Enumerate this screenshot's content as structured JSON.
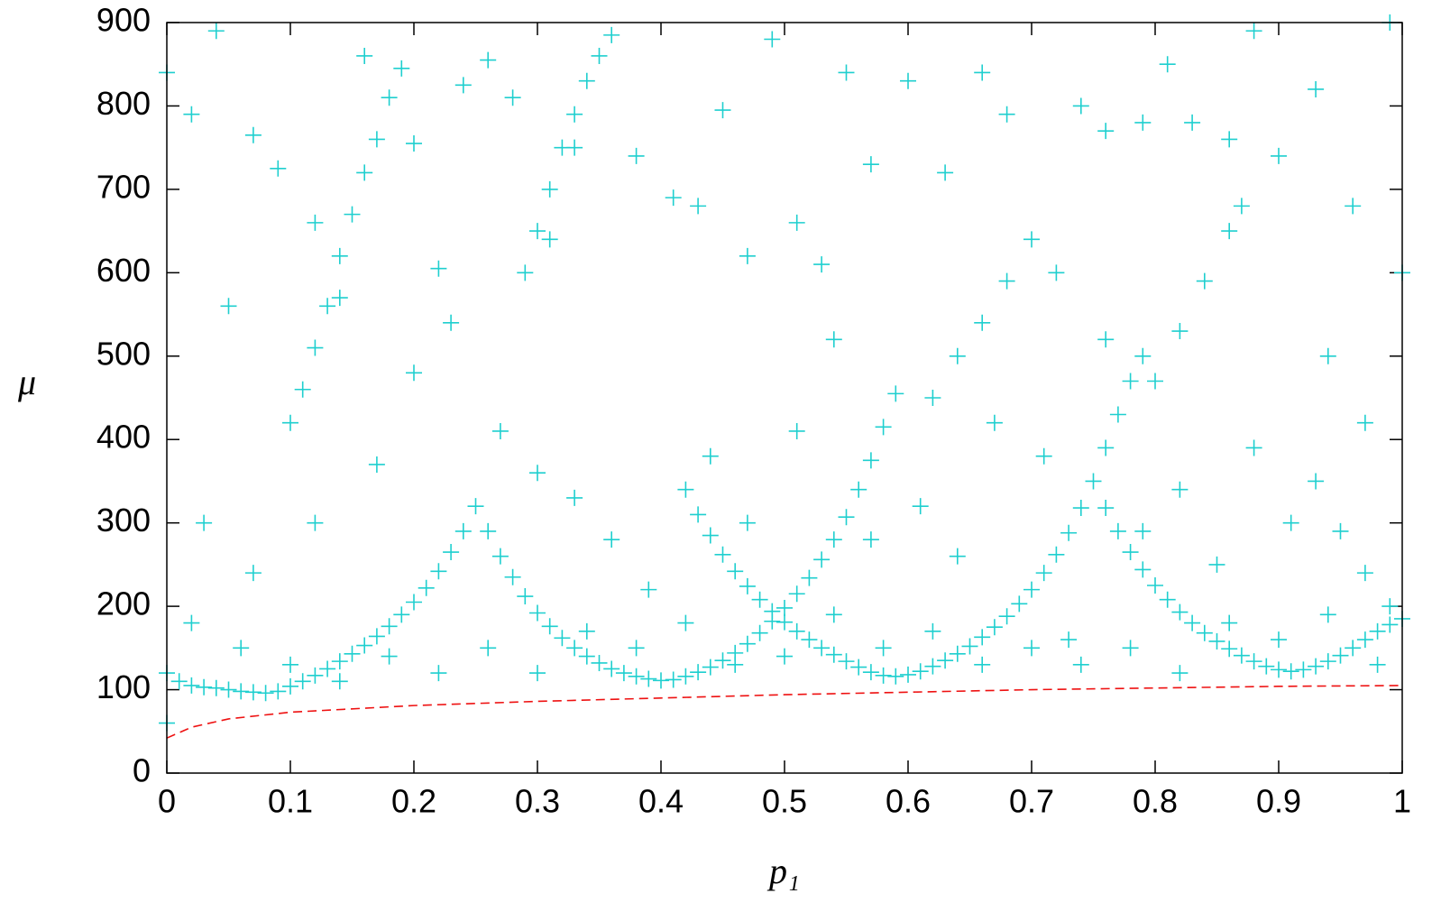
{
  "chart_data": {
    "type": "scatter",
    "xlabel": "p₁",
    "ylabel": "μ",
    "xlim": [
      0,
      1
    ],
    "ylim": [
      0,
      900
    ],
    "xticks": [
      0,
      0.1,
      0.2,
      0.3,
      0.4,
      0.5,
      0.6,
      0.7,
      0.8,
      0.9,
      1
    ],
    "yticks": [
      0,
      100,
      200,
      300,
      400,
      500,
      600,
      700,
      800,
      900
    ],
    "series": [
      {
        "type": "scatter",
        "marker": "+",
        "color": "#1fcfcf",
        "points": [
          [
            0.0,
            120
          ],
          [
            0.01,
            110
          ],
          [
            0.02,
            105
          ],
          [
            0.03,
            103
          ],
          [
            0.04,
            102
          ],
          [
            0.05,
            100
          ],
          [
            0.06,
            98
          ],
          [
            0.07,
            97
          ],
          [
            0.08,
            96
          ],
          [
            0.09,
            98
          ],
          [
            0.1,
            104
          ],
          [
            0.11,
            110
          ],
          [
            0.12,
            117
          ],
          [
            0.13,
            125
          ],
          [
            0.14,
            134
          ],
          [
            0.15,
            143
          ],
          [
            0.16,
            153
          ],
          [
            0.17,
            164
          ],
          [
            0.18,
            176
          ],
          [
            0.19,
            190
          ],
          [
            0.2,
            205
          ],
          [
            0.21,
            222
          ],
          [
            0.22,
            242
          ],
          [
            0.23,
            265
          ],
          [
            0.24,
            290
          ],
          [
            0.25,
            320
          ],
          [
            0.26,
            290
          ],
          [
            0.27,
            260
          ],
          [
            0.28,
            235
          ],
          [
            0.29,
            212
          ],
          [
            0.3,
            192
          ],
          [
            0.31,
            176
          ],
          [
            0.32,
            162
          ],
          [
            0.33,
            150
          ],
          [
            0.34,
            140
          ],
          [
            0.35,
            132
          ],
          [
            0.36,
            125
          ],
          [
            0.37,
            120
          ],
          [
            0.38,
            116
          ],
          [
            0.39,
            113
          ],
          [
            0.4,
            111
          ],
          [
            0.41,
            112
          ],
          [
            0.42,
            116
          ],
          [
            0.43,
            121
          ],
          [
            0.44,
            127
          ],
          [
            0.45,
            135
          ],
          [
            0.46,
            144
          ],
          [
            0.47,
            155
          ],
          [
            0.48,
            168
          ],
          [
            0.49,
            182
          ],
          [
            0.5,
            198
          ],
          [
            0.51,
            215
          ],
          [
            0.52,
            234
          ],
          [
            0.53,
            256
          ],
          [
            0.54,
            280
          ],
          [
            0.55,
            307
          ],
          [
            0.56,
            340
          ],
          [
            0.57,
            375
          ],
          [
            0.58,
            415
          ],
          [
            0.59,
            455
          ],
          [
            0.42,
            340
          ],
          [
            0.43,
            310
          ],
          [
            0.44,
            285
          ],
          [
            0.45,
            262
          ],
          [
            0.46,
            242
          ],
          [
            0.47,
            224
          ],
          [
            0.48,
            208
          ],
          [
            0.49,
            194
          ],
          [
            0.5,
            181
          ],
          [
            0.51,
            170
          ],
          [
            0.52,
            160
          ],
          [
            0.53,
            150
          ],
          [
            0.54,
            142
          ],
          [
            0.55,
            134
          ],
          [
            0.56,
            127
          ],
          [
            0.57,
            121
          ],
          [
            0.58,
            117
          ],
          [
            0.59,
            116
          ],
          [
            0.6,
            118
          ],
          [
            0.61,
            122
          ],
          [
            0.62,
            128
          ],
          [
            0.63,
            135
          ],
          [
            0.64,
            143
          ],
          [
            0.65,
            152
          ],
          [
            0.66,
            163
          ],
          [
            0.67,
            175
          ],
          [
            0.68,
            188
          ],
          [
            0.69,
            203
          ],
          [
            0.7,
            220
          ],
          [
            0.71,
            240
          ],
          [
            0.72,
            262
          ],
          [
            0.73,
            288
          ],
          [
            0.74,
            318
          ],
          [
            0.75,
            350
          ],
          [
            0.76,
            390
          ],
          [
            0.77,
            430
          ],
          [
            0.78,
            470
          ],
          [
            0.79,
            500
          ],
          [
            0.76,
            318
          ],
          [
            0.77,
            290
          ],
          [
            0.78,
            265
          ],
          [
            0.79,
            244
          ],
          [
            0.8,
            225
          ],
          [
            0.81,
            208
          ],
          [
            0.82,
            193
          ],
          [
            0.83,
            180
          ],
          [
            0.84,
            168
          ],
          [
            0.85,
            158
          ],
          [
            0.86,
            149
          ],
          [
            0.87,
            141
          ],
          [
            0.88,
            134
          ],
          [
            0.89,
            128
          ],
          [
            0.9,
            124
          ],
          [
            0.91,
            122
          ],
          [
            0.92,
            124
          ],
          [
            0.93,
            128
          ],
          [
            0.94,
            134
          ],
          [
            0.95,
            141
          ],
          [
            0.96,
            150
          ],
          [
            0.97,
            160
          ],
          [
            0.98,
            170
          ],
          [
            0.99,
            178
          ],
          [
            1.0,
            185
          ],
          [
            0.1,
            420
          ],
          [
            0.11,
            460
          ],
          [
            0.12,
            510
          ],
          [
            0.13,
            560
          ],
          [
            0.14,
            620
          ],
          [
            0.15,
            670
          ],
          [
            0.16,
            720
          ],
          [
            0.17,
            760
          ],
          [
            0.18,
            810
          ],
          [
            0.19,
            845
          ],
          [
            0.29,
            600
          ],
          [
            0.3,
            650
          ],
          [
            0.31,
            700
          ],
          [
            0.32,
            750
          ],
          [
            0.33,
            790
          ],
          [
            0.34,
            830
          ],
          [
            0.35,
            860
          ],
          [
            0.36,
            885
          ],
          [
            0.62,
            450
          ],
          [
            0.64,
            500
          ],
          [
            0.66,
            540
          ],
          [
            0.68,
            590
          ],
          [
            0.7,
            640
          ],
          [
            0.8,
            470
          ],
          [
            0.82,
            530
          ],
          [
            0.84,
            590
          ],
          [
            0.86,
            650
          ],
          [
            0.87,
            680
          ],
          [
            0.93,
            350
          ],
          [
            0.95,
            290
          ],
          [
            0.97,
            240
          ],
          [
            0.99,
            200
          ],
          [
            0.0,
            840
          ],
          [
            0.02,
            790
          ],
          [
            0.04,
            890
          ],
          [
            0.07,
            765
          ],
          [
            0.09,
            725
          ],
          [
            0.12,
            660
          ],
          [
            0.14,
            570
          ],
          [
            0.16,
            860
          ],
          [
            0.2,
            755
          ],
          [
            0.22,
            605
          ],
          [
            0.24,
            825
          ],
          [
            0.26,
            855
          ],
          [
            0.28,
            810
          ],
          [
            0.31,
            640
          ],
          [
            0.33,
            750
          ],
          [
            0.38,
            740
          ],
          [
            0.41,
            690
          ],
          [
            0.43,
            680
          ],
          [
            0.45,
            795
          ],
          [
            0.47,
            620
          ],
          [
            0.49,
            880
          ],
          [
            0.51,
            660
          ],
          [
            0.53,
            610
          ],
          [
            0.55,
            840
          ],
          [
            0.57,
            730
          ],
          [
            0.6,
            830
          ],
          [
            0.63,
            720
          ],
          [
            0.66,
            840
          ],
          [
            0.68,
            790
          ],
          [
            0.72,
            600
          ],
          [
            0.74,
            800
          ],
          [
            0.76,
            770
          ],
          [
            0.79,
            780
          ],
          [
            0.81,
            850
          ],
          [
            0.83,
            780
          ],
          [
            0.86,
            760
          ],
          [
            0.88,
            890
          ],
          [
            0.9,
            740
          ],
          [
            0.93,
            820
          ],
          [
            0.96,
            680
          ],
          [
            0.99,
            900
          ],
          [
            0.03,
            300
          ],
          [
            0.05,
            560
          ],
          [
            0.07,
            240
          ],
          [
            0.12,
            300
          ],
          [
            0.17,
            370
          ],
          [
            0.2,
            480
          ],
          [
            0.23,
            540
          ],
          [
            0.27,
            410
          ],
          [
            0.3,
            360
          ],
          [
            0.33,
            330
          ],
          [
            0.36,
            280
          ],
          [
            0.39,
            220
          ],
          [
            0.44,
            380
          ],
          [
            0.47,
            300
          ],
          [
            0.51,
            410
          ],
          [
            0.54,
            520
          ],
          [
            0.57,
            280
          ],
          [
            0.61,
            320
          ],
          [
            0.64,
            260
          ],
          [
            0.67,
            420
          ],
          [
            0.71,
            380
          ],
          [
            0.73,
            160
          ],
          [
            0.76,
            520
          ],
          [
            0.79,
            290
          ],
          [
            0.82,
            340
          ],
          [
            0.85,
            250
          ],
          [
            0.88,
            390
          ],
          [
            0.91,
            300
          ],
          [
            0.94,
            500
          ],
          [
            0.97,
            420
          ],
          [
            1.0,
            600
          ],
          [
            0.02,
            180
          ],
          [
            0.06,
            150
          ],
          [
            0.1,
            130
          ],
          [
            0.14,
            110
          ],
          [
            0.18,
            140
          ],
          [
            0.22,
            120
          ],
          [
            0.26,
            150
          ],
          [
            0.3,
            120
          ],
          [
            0.34,
            170
          ],
          [
            0.38,
            150
          ],
          [
            0.42,
            180
          ],
          [
            0.46,
            130
          ],
          [
            0.5,
            140
          ],
          [
            0.54,
            190
          ],
          [
            0.58,
            150
          ],
          [
            0.62,
            170
          ],
          [
            0.66,
            130
          ],
          [
            0.7,
            150
          ],
          [
            0.74,
            130
          ],
          [
            0.78,
            150
          ],
          [
            0.82,
            120
          ],
          [
            0.86,
            180
          ],
          [
            0.9,
            160
          ],
          [
            0.94,
            190
          ],
          [
            0.98,
            130
          ],
          [
            0.0,
            60
          ]
        ]
      },
      {
        "type": "line",
        "dash": "dashed",
        "color": "#ee1111",
        "points": [
          [
            0,
            42
          ],
          [
            0.02,
            55
          ],
          [
            0.05,
            65
          ],
          [
            0.1,
            73
          ],
          [
            0.2,
            81
          ],
          [
            0.3,
            86
          ],
          [
            0.4,
            90
          ],
          [
            0.5,
            94
          ],
          [
            0.6,
            97
          ],
          [
            0.7,
            100
          ],
          [
            0.8,
            102
          ],
          [
            0.9,
            104
          ],
          [
            1,
            105
          ]
        ]
      }
    ]
  }
}
